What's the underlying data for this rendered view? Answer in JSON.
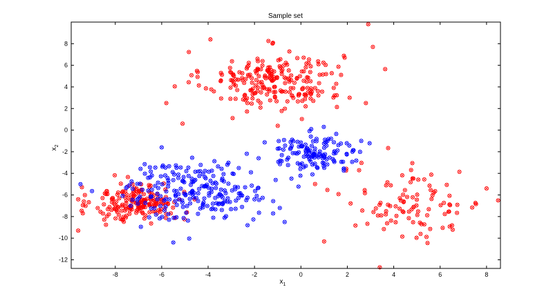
{
  "chart_data": {
    "type": "scatter",
    "title": "Sample set",
    "xlabel": "x",
    "xlabel_sub": "1",
    "ylabel": "x",
    "ylabel_sub": "2",
    "xlim": [
      -9.9,
      8.6
    ],
    "ylim": [
      -12.8,
      10.0
    ],
    "xticks": [
      -8,
      -6,
      -4,
      -2,
      0,
      2,
      4,
      6,
      8
    ],
    "yticks": [
      -12,
      -10,
      -8,
      -6,
      -4,
      -2,
      0,
      2,
      4,
      6,
      8
    ],
    "grid": false,
    "legend": "none",
    "marker": "circle with x",
    "colors": {
      "red": "#ff0000",
      "blue": "#0000ff"
    },
    "series": [
      {
        "color": "red",
        "clusters": [
          {
            "center": [
              -1.2,
              4.6
            ],
            "spread": [
              1.5,
              1.35
            ],
            "count": 230
          },
          {
            "center": [
              -7.0,
              -6.7
            ],
            "spread": [
              0.95,
              0.9
            ],
            "count": 190
          },
          {
            "center": [
              4.8,
              -6.8
            ],
            "spread": [
              1.55,
              1.7
            ],
            "count": 100
          }
        ],
        "extra_points": [
          [
            2.9,
            9.8
          ],
          [
            3.1,
            7.7
          ],
          [
            -3.9,
            8.4
          ],
          [
            -5.8,
            2.5
          ],
          [
            -5.1,
            0.6
          ],
          [
            -9.6,
            -9.3
          ],
          [
            -9.4,
            -7.7
          ],
          [
            -1.0,
            0.4
          ],
          [
            -9.6,
            -6.4
          ],
          [
            3.4,
            -12.7
          ],
          [
            8.0,
            -5.4
          ],
          [
            8.5,
            -6.5
          ],
          [
            2.8,
            2.5
          ],
          [
            2.1,
            3.0
          ],
          [
            1.0,
            -10.3
          ]
        ]
      },
      {
        "color": "blue",
        "clusters": [
          {
            "center": [
              -4.5,
              -5.6
            ],
            "spread": [
              1.55,
              1.35
            ],
            "count": 230
          },
          {
            "center": [
              0.6,
              -2.1
            ],
            "spread": [
              1.05,
              0.85
            ],
            "count": 130
          }
        ],
        "extra_points": [
          [
            -5.5,
            -10.4
          ],
          [
            -9.5,
            -5.0
          ],
          [
            -0.7,
            -8.5
          ],
          [
            -2.3,
            -8.8
          ],
          [
            -6.0,
            -1.6
          ],
          [
            2.6,
            -1.0
          ]
        ]
      }
    ]
  }
}
